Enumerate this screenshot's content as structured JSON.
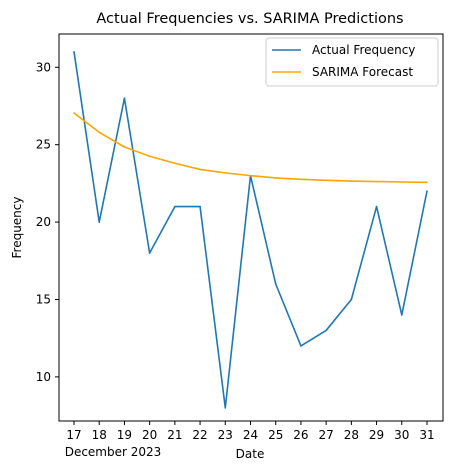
{
  "chart_data": {
    "type": "line",
    "title": "Actual Frequencies vs. SARIMA Predictions",
    "xlabel": "Date",
    "ylabel": "Frequency",
    "x_tick_labels": [
      "17",
      "18",
      "19",
      "20",
      "21",
      "22",
      "23",
      "24",
      "25",
      "26",
      "27",
      "28",
      "29",
      "30",
      "31"
    ],
    "x_offset_label": "December 2023",
    "x": [
      "2023-12-17",
      "2023-12-18",
      "2023-12-19",
      "2023-12-20",
      "2023-12-21",
      "2023-12-22",
      "2023-12-23",
      "2023-12-24",
      "2023-12-25",
      "2023-12-26",
      "2023-12-27",
      "2023-12-28",
      "2023-12-29",
      "2023-12-30",
      "2023-12-31"
    ],
    "series": [
      {
        "name": "Actual Frequency",
        "color": "#1f77b4",
        "values": [
          31,
          20,
          28,
          18,
          21,
          21,
          8,
          23,
          16,
          12,
          13,
          15,
          21,
          14,
          22
        ]
      },
      {
        "name": "SARIMA Forecast",
        "color": "#ffa500",
        "values": [
          27.05,
          25.8,
          24.85,
          24.25,
          23.8,
          23.4,
          23.18,
          23.0,
          22.85,
          22.76,
          22.7,
          22.65,
          22.62,
          22.59,
          22.57
        ]
      }
    ],
    "y_ticks": [
      10,
      15,
      20,
      25,
      30
    ],
    "ylim": [
      7.15,
      32.15
    ],
    "grid": false,
    "legend_position": "upper right"
  }
}
